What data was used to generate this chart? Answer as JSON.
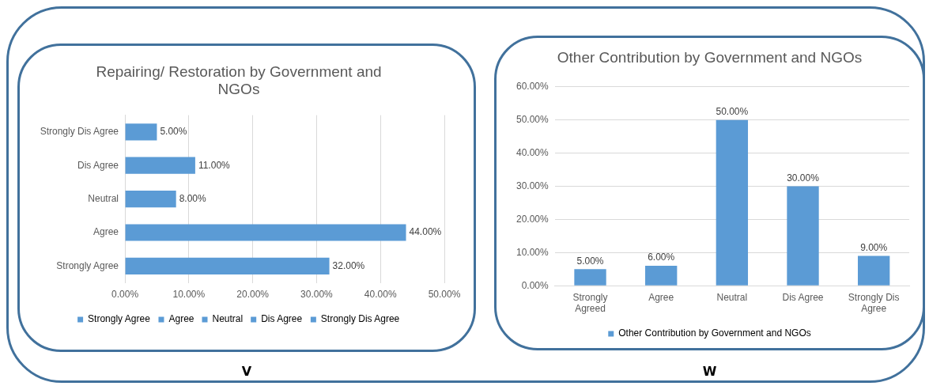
{
  "chart_data": [
    {
      "type": "bar",
      "orientation": "horizontal",
      "title": "Repairing/ Restoration by Government and NGOs",
      "categories": [
        "Strongly Dis Agree",
        "Dis Agree",
        "Neutral",
        "Agree",
        "Strongly Agree"
      ],
      "series": [
        {
          "name": "Strongly Agree",
          "color": "#5b9bd5",
          "values": [
            null,
            null,
            null,
            null,
            32
          ]
        },
        {
          "name": "Agree",
          "color": "#5b9bd5",
          "values": [
            null,
            null,
            null,
            44,
            null
          ]
        },
        {
          "name": "Neutral",
          "color": "#5b9bd5",
          "values": [
            null,
            null,
            8,
            null,
            null
          ]
        },
        {
          "name": "Dis Agree",
          "color": "#5b9bd5",
          "values": [
            null,
            11,
            null,
            null,
            null
          ]
        },
        {
          "name": "Strongly Dis Agree",
          "color": "#5b9bd5",
          "values": [
            5,
            null,
            null,
            null,
            null
          ]
        }
      ],
      "value_labels": [
        "5.00%",
        "11.00%",
        "8.00%",
        "44.00%",
        "32.00%"
      ],
      "xlim": [
        0,
        50
      ],
      "xticks": [
        {
          "value": 0,
          "label": "0.00%"
        },
        {
          "value": 10,
          "label": "10.00%"
        },
        {
          "value": 20,
          "label": "20.00%"
        },
        {
          "value": 30,
          "label": "30.00%"
        },
        {
          "value": 40,
          "label": "40.00%"
        },
        {
          "value": 50,
          "label": "50.00%"
        }
      ],
      "grid": "x",
      "legend": "bottom",
      "annotations": [
        "V"
      ]
    },
    {
      "type": "bar",
      "title": "Other Contribution by Government and NGOs",
      "categories": [
        "Strongly Agreed",
        "Agree",
        "Neutral",
        "Dis Agree",
        "Strongly Dis Agree"
      ],
      "series": [
        {
          "name": "Other Contribution by Government and NGOs",
          "color": "#5b9bd5",
          "values": [
            5,
            6,
            50,
            30,
            9
          ]
        }
      ],
      "value_labels": [
        "5.00%",
        "6.00%",
        "50.00%",
        "30.00%",
        "9.00%"
      ],
      "ylim": [
        0,
        60
      ],
      "yticks": [
        {
          "value": 0,
          "label": "0.00%"
        },
        {
          "value": 10,
          "label": "10.00%"
        },
        {
          "value": 20,
          "label": "20.00%"
        },
        {
          "value": 30,
          "label": "30.00%"
        },
        {
          "value": 40,
          "label": "40.00%"
        },
        {
          "value": 50,
          "label": "50.00%"
        },
        {
          "value": 60,
          "label": "60.00%"
        }
      ],
      "grid": "y",
      "legend": "bottom",
      "annotations": [
        "W"
      ]
    }
  ]
}
